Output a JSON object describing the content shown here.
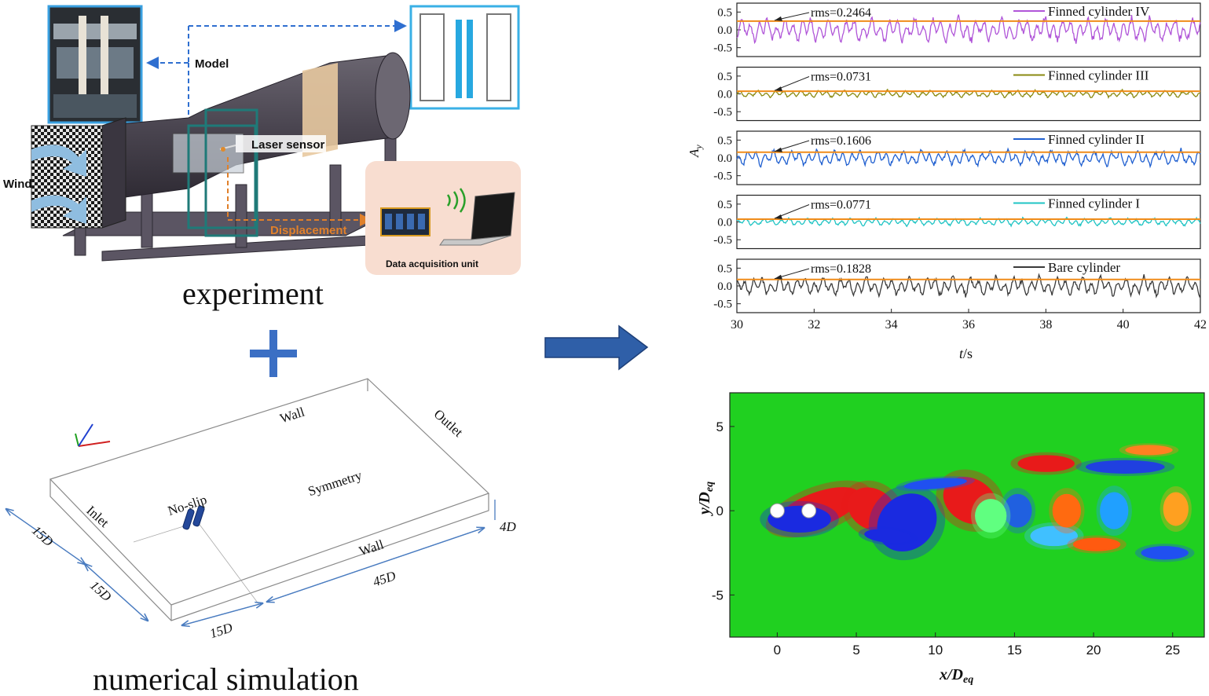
{
  "experiment": {
    "caption": "experiment",
    "model_label": "Model",
    "laser_label": "Laser sensor",
    "wind_label": "Wind",
    "displacement_label": "Displacement",
    "daq_label": "Data acquisition unit"
  },
  "simulation": {
    "caption": "numerical simulation",
    "wall_top": "Wall",
    "outlet": "Outlet",
    "symmetry": "Symmetry",
    "noslip": "No-slip",
    "inlet": "Inlet",
    "wall_bottom": "Wall",
    "dim_15d_a": "15D",
    "dim_15d_b": "15D",
    "dim_15d_c": "15D",
    "dim_45d": "45D",
    "dim_4d": "4D"
  },
  "colors": {
    "arrow": "#2f5fa8",
    "plus": "#3b6fc4",
    "rms_line": "#f08c1a",
    "field_bg": "#20d020"
  },
  "chart_data": [
    {
      "type": "line",
      "xlabel": "t/s",
      "ylabel": "Ay",
      "xlim": [
        30,
        42
      ],
      "x_ticks": [
        "30",
        "32",
        "34",
        "36",
        "38",
        "40",
        "42"
      ],
      "y_ticks": [
        "0.5",
        "0.0",
        "-0.5"
      ],
      "panels": [
        {
          "name": "Finned cylinder IV",
          "rms_label": "rms=0.2464",
          "rms": 0.2464,
          "amp": 0.42,
          "color": "#b055d8"
        },
        {
          "name": "Finned cylinder III",
          "rms_label": "rms=0.0731",
          "rms": 0.0731,
          "amp": 0.12,
          "color": "#8a8a10"
        },
        {
          "name": "Finned cylinder II",
          "rms_label": "rms=0.1606",
          "rms": 0.1606,
          "amp": 0.26,
          "color": "#1f5fd0"
        },
        {
          "name": "Finned cylinder I",
          "rms_label": "rms=0.0771",
          "rms": 0.0771,
          "amp": 0.13,
          "color": "#1fc4c4"
        },
        {
          "name": "Bare cylinder",
          "rms_label": "rms=0.1828",
          "rms": 0.1828,
          "amp": 0.32,
          "color": "#3a3a3a"
        }
      ]
    },
    {
      "type": "heatmap",
      "xlabel": "x/Deq",
      "ylabel": "y/Deq",
      "xlim": [
        -3,
        27
      ],
      "ylim": [
        -7.5,
        7
      ],
      "x_ticks": [
        "0",
        "5",
        "10",
        "15",
        "20",
        "25"
      ],
      "y_ticks": [
        "5",
        "0",
        "-5"
      ]
    }
  ]
}
